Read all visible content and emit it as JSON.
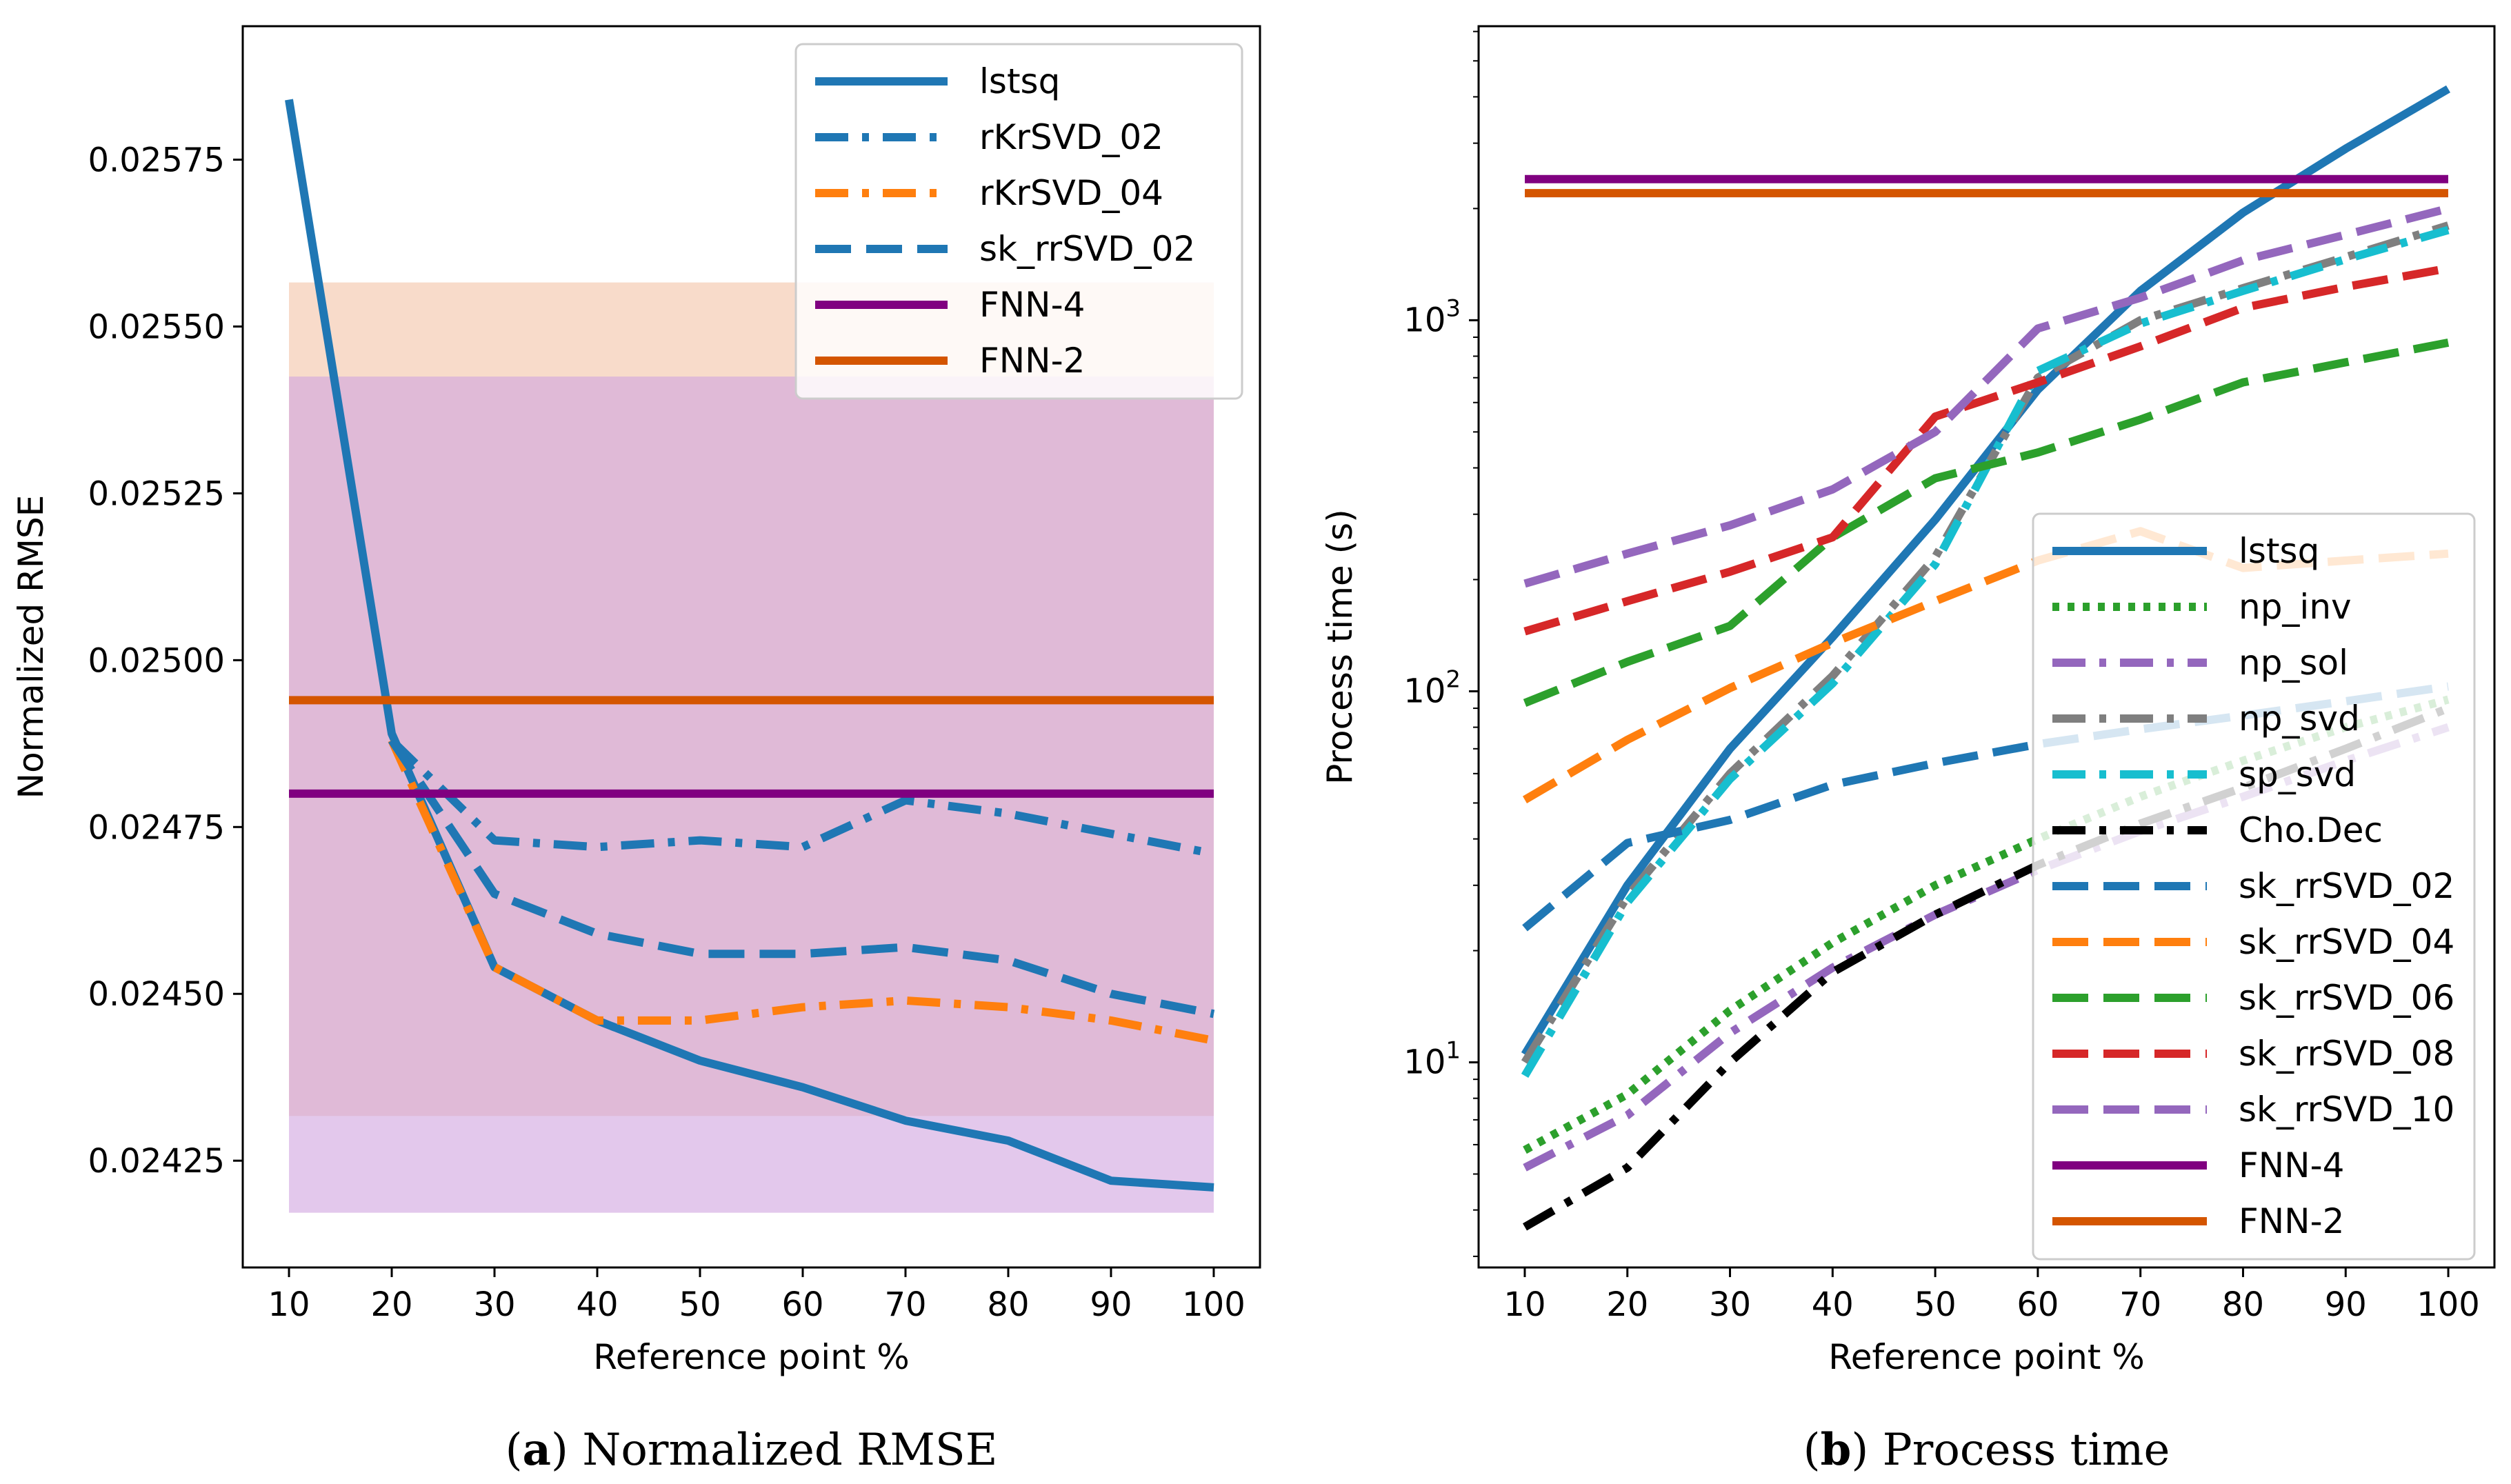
{
  "chart_data": [
    {
      "type": "line",
      "caption_letter": "a",
      "caption_text": "Normalized RMSE",
      "xlabel": "Reference point %",
      "ylabel": "Normalized RMSE",
      "xticks": [
        10,
        20,
        30,
        40,
        50,
        60,
        70,
        80,
        90,
        100
      ],
      "yticks": [
        0.02425,
        0.0245,
        0.02475,
        0.025,
        0.02525,
        0.0255,
        0.02575
      ],
      "ytick_labels": [
        "0.02425",
        "0.02450",
        "0.02475",
        "0.02500",
        "0.02525",
        "0.02550",
        "0.02575"
      ],
      "xlim": [
        5.5,
        104.5
      ],
      "ylim": [
        0.02409,
        0.02595
      ],
      "log_y": false,
      "legend_position": "top-right",
      "bands": [
        {
          "name": "FNN-2 range",
          "x": [
            10,
            100
          ],
          "y": [
            0.024317,
            0.025566
          ],
          "color": "#f4c8ad",
          "opacity": 0.65
        },
        {
          "name": "FNN-4 range",
          "x": [
            10,
            100
          ],
          "y": [
            0.024172,
            0.025425
          ],
          "color": "#d1a3df",
          "opacity": 0.6
        }
      ],
      "series": [
        {
          "name": "lstsq",
          "color": "#1f77b4",
          "dash": "solid",
          "x": [
            10,
            20,
            30,
            40,
            50,
            60,
            70,
            80,
            90,
            100
          ],
          "values": [
            0.02584,
            0.02489,
            0.02454,
            0.02446,
            0.0244,
            0.02436,
            0.02431,
            0.02428,
            0.02422,
            0.02421
          ]
        },
        {
          "name": "rKrSVD_02",
          "color": "#1f77b4",
          "dash": "dashdot",
          "x": [
            20,
            30,
            40,
            50,
            60,
            70,
            80,
            90,
            100
          ],
          "values": [
            0.02488,
            0.02473,
            0.02472,
            0.02473,
            0.02472,
            0.02479,
            0.02477,
            0.02474,
            0.02471
          ]
        },
        {
          "name": "rKrSVD_04",
          "color": "#ff7f0e",
          "dash": "dashdot",
          "x": [
            20,
            30,
            40,
            50,
            60,
            70,
            80,
            90,
            100
          ],
          "values": [
            0.02488,
            0.02454,
            0.02446,
            0.02446,
            0.02448,
            0.02449,
            0.02448,
            0.02446,
            0.02443
          ]
        },
        {
          "name": "sk_rrSVD_02",
          "color": "#1f77b4",
          "dash": "dashed",
          "x": [
            20,
            30,
            40,
            50,
            60,
            70,
            80,
            90,
            100
          ],
          "values": [
            0.02488,
            0.02465,
            0.02459,
            0.02456,
            0.02456,
            0.02457,
            0.02455,
            0.0245,
            0.02447
          ]
        },
        {
          "name": "FNN-4",
          "color": "#800080",
          "dash": "solid",
          "x": [
            10,
            100
          ],
          "values": [
            0.0248,
            0.0248
          ]
        },
        {
          "name": "FNN-2",
          "color": "#d45500",
          "dash": "solid",
          "x": [
            10,
            100
          ],
          "values": [
            0.02494,
            0.02494
          ]
        }
      ]
    },
    {
      "type": "line",
      "caption_letter": "b",
      "caption_text": "Process time",
      "xlabel": "Reference point %",
      "ylabel": "Process time (s)",
      "xticks": [
        10,
        20,
        30,
        40,
        50,
        60,
        70,
        80,
        90,
        100
      ],
      "yticks": [
        10,
        100,
        1000
      ],
      "ytick_labels": [
        "10^1",
        "10^2",
        "10^3"
      ],
      "xlim": [
        5.5,
        104.5
      ],
      "ylim": [
        2.8,
        6200
      ],
      "log_y": true,
      "legend_position": "lower-right",
      "series": [
        {
          "name": "lstsq",
          "color": "#1f77b4",
          "dash": "solid",
          "x": [
            10,
            20,
            30,
            40,
            50,
            60,
            70,
            80,
            90,
            100
          ],
          "values": [
            10.5,
            30,
            70,
            140,
            290,
            650,
            1200,
            1950,
            2900,
            4200
          ]
        },
        {
          "name": "np_inv",
          "color": "#2ca02c",
          "dash": "dotted",
          "x": [
            10,
            20,
            30,
            40,
            50,
            60,
            70,
            80,
            90,
            100
          ],
          "values": [
            5.8,
            8.2,
            13.8,
            21,
            30,
            40,
            52,
            65,
            80,
            95
          ]
        },
        {
          "name": "np_sol",
          "color": "#9467bd",
          "dash": "dashdot",
          "x": [
            10,
            20,
            30,
            40,
            50,
            60,
            70,
            80,
            90,
            100
          ],
          "values": [
            5.2,
            7.2,
            12,
            18,
            25,
            33,
            42,
            52,
            65,
            80
          ]
        },
        {
          "name": "np_svd",
          "color": "#7f7f7f",
          "dash": "dashdot",
          "x": [
            10,
            20,
            30,
            40,
            50,
            60,
            70,
            80,
            90,
            100
          ],
          "values": [
            10,
            28,
            60,
            110,
            230,
            700,
            1000,
            1220,
            1480,
            1800
          ]
        },
        {
          "name": "sp_svd",
          "color": "#17becf",
          "dash": "dashdot",
          "x": [
            10,
            20,
            30,
            40,
            50,
            60,
            70,
            80,
            90,
            100
          ],
          "values": [
            9.2,
            27,
            58,
            105,
            220,
            730,
            980,
            1200,
            1460,
            1750
          ]
        },
        {
          "name": "Cho.Dec",
          "color": "#000000",
          "dash": "dashdot",
          "x": [
            10,
            20,
            30,
            40,
            50,
            60,
            70,
            80,
            90,
            100
          ],
          "values": [
            3.6,
            5.2,
            10,
            17.5,
            25,
            34,
            44,
            55,
            70,
            90
          ]
        },
        {
          "name": "sk_rrSVD_02",
          "color": "#1f77b4",
          "dash": "dashed",
          "x": [
            10,
            20,
            30,
            40,
            50,
            60,
            70,
            80,
            90,
            100
          ],
          "values": [
            23,
            39,
            45,
            56,
            64,
            72,
            79,
            86,
            94,
            103
          ]
        },
        {
          "name": "sk_rrSVD_04",
          "color": "#ff7f0e",
          "dash": "dashed",
          "x": [
            10,
            20,
            30,
            40,
            50,
            60,
            70,
            80,
            90,
            100
          ],
          "values": [
            51,
            74,
            102,
            135,
            175,
            225,
            270,
            215,
            225,
            235
          ]
        },
        {
          "name": "sk_rrSVD_06",
          "color": "#2ca02c",
          "dash": "dashed",
          "x": [
            10,
            20,
            30,
            40,
            50,
            60,
            70,
            80,
            90,
            100
          ],
          "values": [
            93,
            120,
            150,
            260,
            375,
            440,
            540,
            680,
            770,
            870
          ]
        },
        {
          "name": "sk_rrSVD_08",
          "color": "#d62728",
          "dash": "dashed",
          "x": [
            10,
            20,
            30,
            40,
            50,
            60,
            70,
            80,
            90,
            100
          ],
          "values": [
            145,
            175,
            210,
            260,
            550,
            680,
            850,
            1080,
            1230,
            1380
          ]
        },
        {
          "name": "sk_rrSVD_10",
          "color": "#9467bd",
          "dash": "dashed",
          "x": [
            10,
            20,
            30,
            40,
            50,
            60,
            70,
            80,
            90,
            100
          ],
          "values": [
            195,
            235,
            280,
            350,
            500,
            950,
            1150,
            1450,
            1700,
            2000
          ]
        },
        {
          "name": "FNN-4",
          "color": "#800080",
          "dash": "solid",
          "x": [
            10,
            100
          ],
          "values": [
            2400,
            2400
          ]
        },
        {
          "name": "FNN-2",
          "color": "#d45500",
          "dash": "solid",
          "x": [
            10,
            100
          ],
          "values": [
            2200,
            2200
          ]
        }
      ]
    }
  ]
}
